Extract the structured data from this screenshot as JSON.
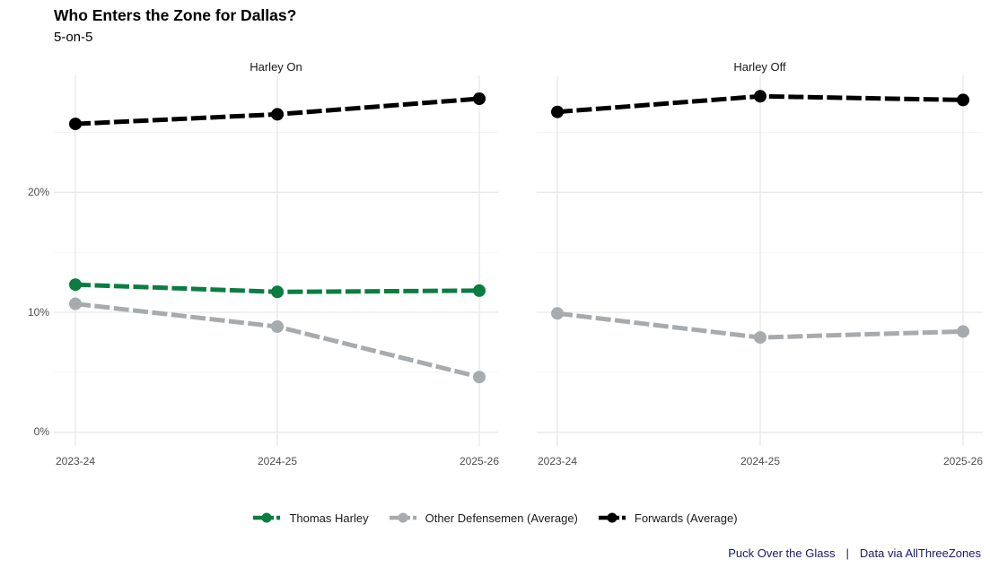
{
  "header": {
    "title": "Who Enters the Zone for Dallas?",
    "subtitle": "5-on-5"
  },
  "chart_data": {
    "type": "line",
    "title": "Who Enters the Zone for Dallas?",
    "subtitle": "5-on-5",
    "xlabel": "",
    "ylabel": "",
    "x_categories": [
      "2023-24",
      "2024-25",
      "2025-26"
    ],
    "y_tick_labels": [
      "0%",
      "10%",
      "20%"
    ],
    "y_major_values": [
      0,
      10,
      20
    ],
    "y_minor_values": [
      5,
      15,
      25
    ],
    "ylim": [
      -1.2,
      29.8
    ],
    "grid": "horizontal major+minor, vertical at x categories",
    "legend_position": "bottom",
    "line_style": "dashed, thick, with point markers",
    "facets": [
      {
        "label": "Harley On",
        "series": [
          {
            "name": "Thomas Harley",
            "color": "#0b7d40",
            "values": [
              12.3,
              11.7,
              11.8
            ]
          },
          {
            "name": "Other Defensemen (Average)",
            "color": "#a7abae",
            "values": [
              10.7,
              8.8,
              4.6
            ]
          },
          {
            "name": "Forwards (Average)",
            "color": "#000000",
            "values": [
              25.7,
              26.5,
              27.8
            ]
          }
        ]
      },
      {
        "label": "Harley Off",
        "series": [
          {
            "name": "Other Defensemen (Average)",
            "color": "#a7abae",
            "values": [
              9.9,
              7.9,
              8.4
            ]
          },
          {
            "name": "Forwards (Average)",
            "color": "#000000",
            "values": [
              26.7,
              28.0,
              27.7
            ]
          }
        ]
      }
    ]
  },
  "legend": {
    "items": [
      {
        "label": "Thomas Harley",
        "color": "#0b7d40"
      },
      {
        "label": "Other Defensemen (Average)",
        "color": "#a7abae"
      },
      {
        "label": "Forwards (Average)",
        "color": "#000000"
      }
    ]
  },
  "caption": {
    "left": "Puck Over the Glass",
    "separator": "|",
    "right": "Data via AllThreeZones",
    "color": "#191970"
  },
  "colors": {
    "background": "#ffffff",
    "grid_major": "#e8e8e8",
    "grid_minor": "#f3f3f3",
    "axis_text": "#4d4d4d",
    "facet_text": "#1a1a1a"
  }
}
